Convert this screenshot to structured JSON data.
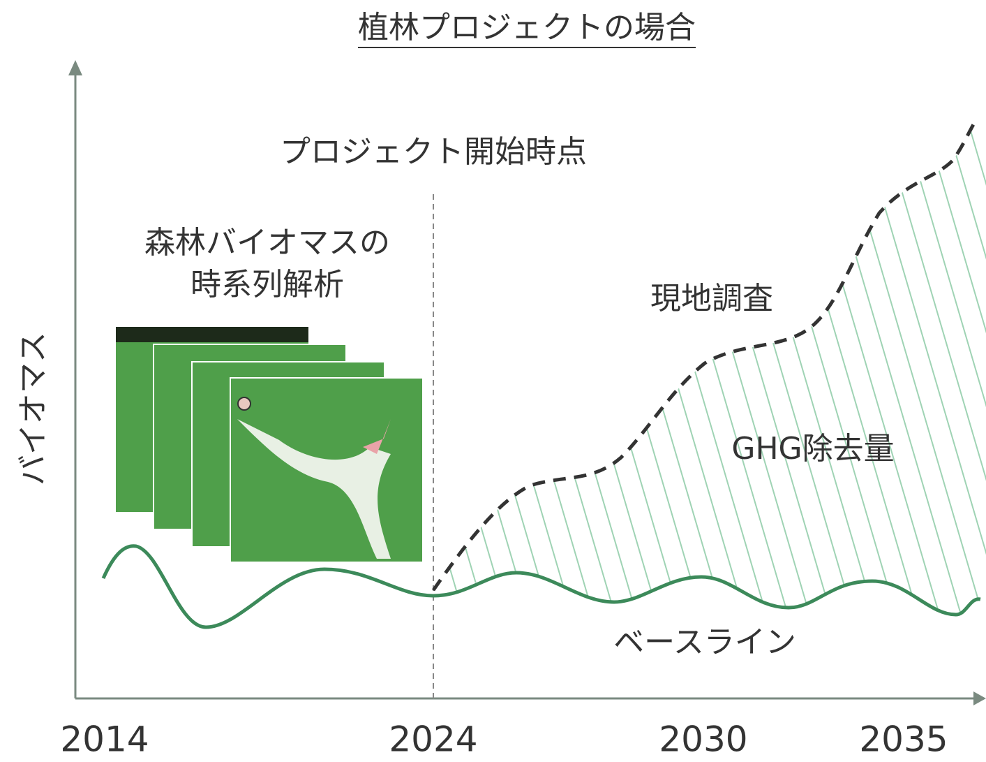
{
  "title": "植林プロジェクトの場合",
  "y_axis_label": "バイオマス",
  "x_axis_labels": [
    "2014",
    "2024",
    "2030",
    "2035"
  ],
  "annotations": {
    "project_start": "プロジェクト開始時点",
    "analysis": [
      "森林バイオマスの",
      "時系列解析"
    ],
    "field_survey": "現地調査",
    "removal": "GHG除去量",
    "baseline": "ベースライン"
  }
}
